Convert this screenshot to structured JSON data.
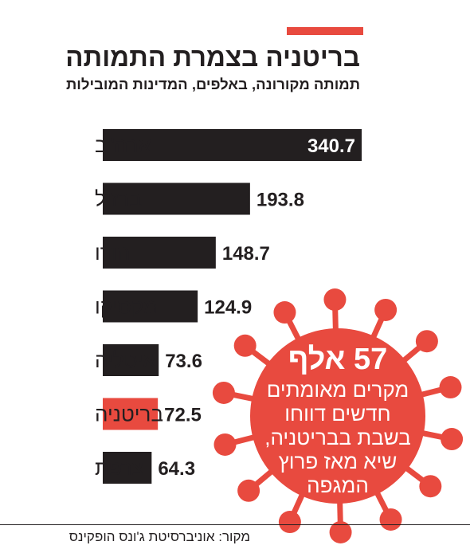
{
  "accent_color": "#e84a3f",
  "bar_color": "#231f20",
  "highlight_color": "#e84a3f",
  "title": "בריטניה בצמרת התמותה",
  "subtitle": "תמותה מקורונה, באלפים, המדינות המובילות",
  "source": "מקור: אוניברסיטת ג'ונס הופקינס",
  "callout": {
    "icon": "virus-icon",
    "headline": "57 אלף",
    "lines": [
      "מקרים מאומתים",
      "חדשים דווחו",
      "בשבת בבריטניה,",
      "שיא מאז פרוץ",
      "המגפה"
    ]
  },
  "chart_data": {
    "type": "bar",
    "orientation": "horizontal",
    "categories": [
      "ארה\"ב",
      "ברזיל",
      "הודו",
      "מקסיקו",
      "איטליה",
      "בריטניה",
      "צרפת"
    ],
    "values": [
      340.7,
      193.8,
      148.7,
      124.9,
      73.6,
      72.5,
      64.3
    ],
    "labels": [
      "340.7",
      "193.8",
      "148.7",
      "124.9",
      "73.6",
      "72.5",
      "64.3"
    ],
    "highlight": "בריטניה",
    "grid": false,
    "legend": "none"
  }
}
